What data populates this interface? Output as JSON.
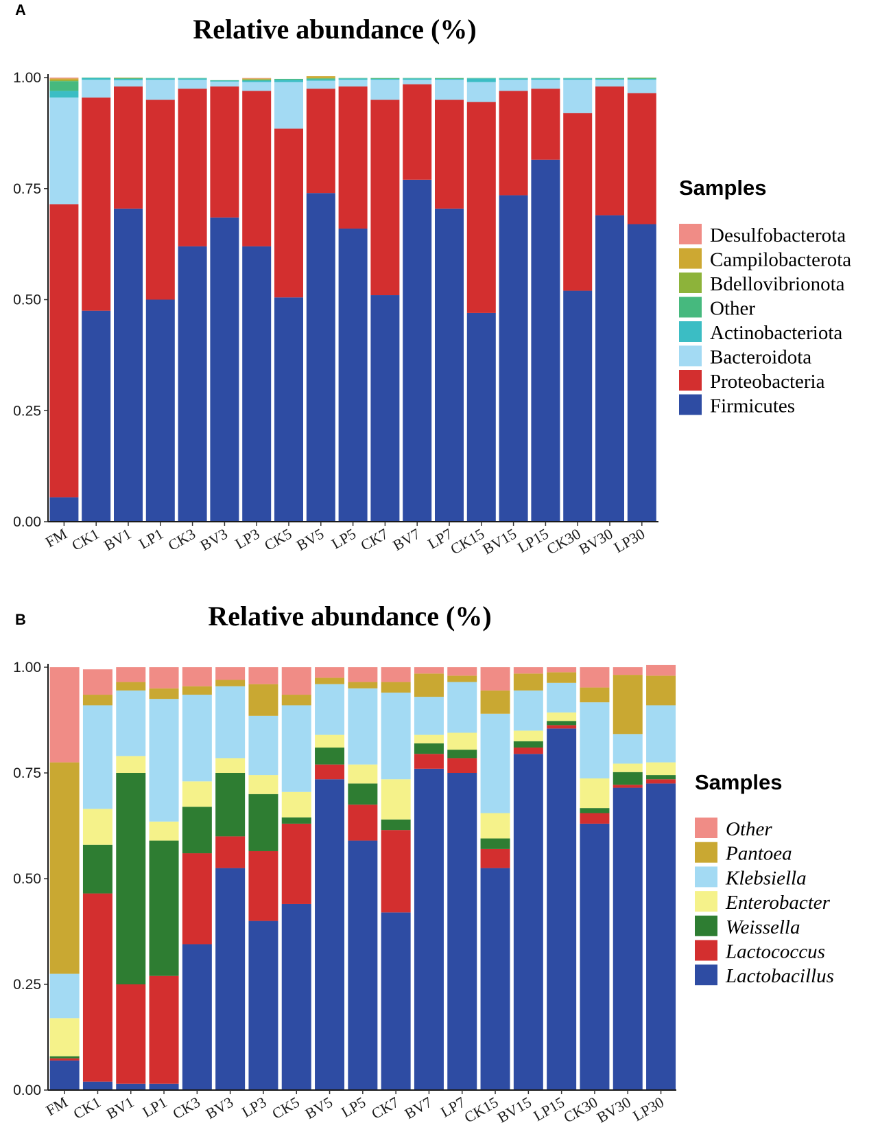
{
  "chart_data": [
    {
      "panel": "A",
      "type": "bar",
      "stacked": true,
      "title": "Relative abundance (%)",
      "xlabel": "",
      "ylabel": "",
      "ylim": [
        0,
        1
      ],
      "yticks": [
        "0.00",
        "0.25",
        "0.50",
        "0.75",
        "1.00"
      ],
      "categories": [
        "FM",
        "CK1",
        "BV1",
        "LP1",
        "CK3",
        "BV3",
        "LP3",
        "CK5",
        "BV5",
        "LP5",
        "CK7",
        "BV7",
        "LP7",
        "CK15",
        "BV15",
        "LP15",
        "CK30",
        "BV30",
        "LP30"
      ],
      "legend_title": "Samples",
      "legend_position": "right",
      "legend_italic": false,
      "series": [
        {
          "name": "Firmicutes",
          "color": "#2E4CA3",
          "values": [
            0.055,
            0.475,
            0.705,
            0.5,
            0.62,
            0.685,
            0.62,
            0.505,
            0.74,
            0.66,
            0.51,
            0.77,
            0.705,
            0.47,
            0.735,
            0.815,
            0.52,
            0.69,
            0.67
          ]
        },
        {
          "name": "Proteobacteria",
          "color": "#D32F2F",
          "values": [
            0.66,
            0.48,
            0.275,
            0.45,
            0.355,
            0.295,
            0.35,
            0.38,
            0.235,
            0.32,
            0.44,
            0.215,
            0.245,
            0.475,
            0.235,
            0.16,
            0.4,
            0.29,
            0.295
          ]
        },
        {
          "name": "Bacteroidota",
          "color": "#A3DAF3",
          "values": [
            0.24,
            0.04,
            0.014,
            0.045,
            0.02,
            0.011,
            0.02,
            0.105,
            0.018,
            0.015,
            0.045,
            0.01,
            0.045,
            0.045,
            0.025,
            0.02,
            0.075,
            0.015,
            0.03
          ]
        },
        {
          "name": "Actinobacteriota",
          "color": "#3BBDC4",
          "values": [
            0.015,
            0.004,
            0.003,
            0.003,
            0.003,
            0.002,
            0.003,
            0.005,
            0.003,
            0.003,
            0.002,
            0.003,
            0.002,
            0.008,
            0.003,
            0.003,
            0.003,
            0.002,
            0.002
          ]
        },
        {
          "name": "Other",
          "color": "#46B97E",
          "values": [
            0.022,
            0.001,
            0.002,
            0.001,
            0.001,
            0.001,
            0.002,
            0.002,
            0.002,
            0.001,
            0.002,
            0.001,
            0.002,
            0.001,
            0.001,
            0.001,
            0.001,
            0.002,
            0.002
          ]
        },
        {
          "name": "Bdellovibrionota",
          "color": "#8DB33A",
          "values": [
            0.002,
            0,
            0,
            0,
            0,
            0,
            0.001,
            0,
            0.001,
            0,
            0,
            0,
            0,
            0,
            0,
            0,
            0,
            0,
            0.001
          ]
        },
        {
          "name": "Campilobacterota",
          "color": "#CDA832",
          "values": [
            0.004,
            0,
            0.001,
            0,
            0,
            0,
            0.002,
            0,
            0.004,
            0,
            0,
            0,
            0,
            0,
            0,
            0,
            0,
            0,
            0
          ]
        },
        {
          "name": "Desulfobacterota",
          "color": "#F08C86",
          "values": [
            0.002,
            0,
            0,
            0,
            0,
            0,
            0.001,
            0,
            0,
            0,
            0,
            0,
            0,
            0,
            0,
            0,
            0,
            0,
            0
          ]
        }
      ]
    },
    {
      "panel": "B",
      "type": "bar",
      "stacked": true,
      "title": "Relative abundance (%)",
      "xlabel": "",
      "ylabel": "",
      "ylim": [
        0,
        1
      ],
      "yticks": [
        "0.00",
        "0.25",
        "0.50",
        "0.75",
        "1.00"
      ],
      "categories": [
        "FM",
        "CK1",
        "BV1",
        "LP1",
        "CK3",
        "BV3",
        "LP3",
        "CK5",
        "BV5",
        "LP5",
        "CK7",
        "BV7",
        "LP7",
        "CK15",
        "BV15",
        "LP15",
        "CK30",
        "BV30",
        "LP30"
      ],
      "legend_title": "Samples",
      "legend_position": "right",
      "legend_italic": true,
      "series": [
        {
          "name": "Lactobacillus",
          "color": "#2E4CA3",
          "values": [
            0.07,
            0.02,
            0.015,
            0.015,
            0.345,
            0.525,
            0.4,
            0.44,
            0.735,
            0.59,
            0.42,
            0.76,
            0.75,
            0.525,
            0.795,
            0.855,
            0.63,
            0.715,
            0.725
          ]
        },
        {
          "name": "Lactococcus",
          "color": "#D32F2F",
          "values": [
            0.005,
            0.445,
            0.235,
            0.255,
            0.215,
            0.075,
            0.165,
            0.19,
            0.035,
            0.085,
            0.195,
            0.035,
            0.035,
            0.045,
            0.015,
            0.008,
            0.025,
            0.007,
            0.01
          ]
        },
        {
          "name": "Weissella",
          "color": "#2E7D32",
          "values": [
            0.005,
            0.115,
            0.5,
            0.32,
            0.11,
            0.15,
            0.135,
            0.015,
            0.04,
            0.05,
            0.025,
            0.025,
            0.02,
            0.025,
            0.015,
            0.01,
            0.012,
            0.03,
            0.01
          ]
        },
        {
          "name": "Enterobacter",
          "color": "#F5F28A",
          "values": [
            0.09,
            0.085,
            0.04,
            0.045,
            0.06,
            0.035,
            0.045,
            0.06,
            0.03,
            0.045,
            0.095,
            0.02,
            0.04,
            0.06,
            0.025,
            0.02,
            0.07,
            0.02,
            0.03
          ]
        },
        {
          "name": "Klebsiella",
          "color": "#A3DAF3",
          "values": [
            0.105,
            0.245,
            0.155,
            0.29,
            0.205,
            0.17,
            0.14,
            0.205,
            0.12,
            0.18,
            0.205,
            0.09,
            0.12,
            0.235,
            0.095,
            0.07,
            0.18,
            0.07,
            0.135
          ]
        },
        {
          "name": "Pantoea",
          "color": "#C9A832",
          "values": [
            0.5,
            0.025,
            0.02,
            0.025,
            0.02,
            0.015,
            0.075,
            0.025,
            0.015,
            0.015,
            0.025,
            0.055,
            0.015,
            0.055,
            0.04,
            0.025,
            0.035,
            0.14,
            0.07
          ]
        },
        {
          "name": "Other",
          "color": "#F08C86",
          "values": [
            0.225,
            0.06,
            0.035,
            0.05,
            0.045,
            0.03,
            0.04,
            0.065,
            0.025,
            0.035,
            0.035,
            0.015,
            0.02,
            0.055,
            0.015,
            0.012,
            0.048,
            0.018,
            0.025
          ]
        }
      ]
    }
  ]
}
